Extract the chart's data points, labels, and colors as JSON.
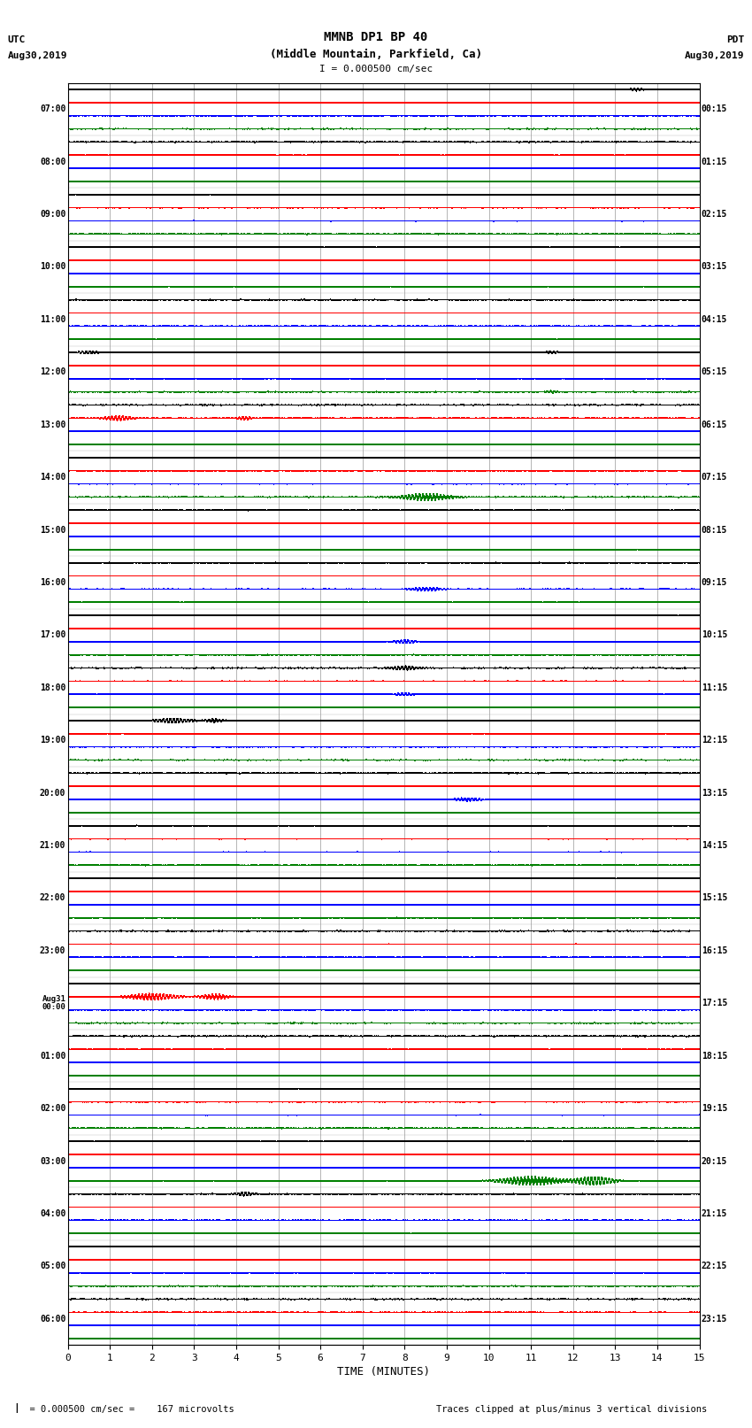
{
  "title_line1": "MMNB DP1 BP 40",
  "title_line2": "(Middle Mountain, Parkfield, Ca)",
  "scale_text": "I = 0.000500 cm/sec",
  "left_label_top": "UTC",
  "left_label_date": "Aug30,2019",
  "right_label_top": "PDT",
  "right_label_date": "Aug30,2019",
  "xlabel": "TIME (MINUTES)",
  "footer_left": "  = 0.000500 cm/sec =    167 microvolts",
  "footer_right": "Traces clipped at plus/minus 3 vertical divisions",
  "utc_labels": [
    "07:00",
    "08:00",
    "09:00",
    "10:00",
    "11:00",
    "12:00",
    "13:00",
    "14:00",
    "15:00",
    "16:00",
    "17:00",
    "18:00",
    "19:00",
    "20:00",
    "21:00",
    "22:00",
    "23:00",
    "Aug31\n00:00",
    "01:00",
    "02:00",
    "03:00",
    "04:00",
    "05:00",
    "06:00"
  ],
  "pdt_labels": [
    "00:15",
    "01:15",
    "02:15",
    "03:15",
    "04:15",
    "05:15",
    "06:15",
    "07:15",
    "08:15",
    "09:15",
    "10:15",
    "11:15",
    "12:15",
    "13:15",
    "14:15",
    "15:15",
    "16:15",
    "17:15",
    "18:15",
    "19:15",
    "20:15",
    "21:15",
    "22:15",
    "23:15"
  ],
  "n_rows": 24,
  "n_traces_per_row": 4,
  "trace_colors": [
    "black",
    "red",
    "blue",
    "green"
  ],
  "bg_color": "white",
  "grid_color": "#999999",
  "minutes_per_row": 15,
  "x_ticks": [
    0,
    1,
    2,
    3,
    4,
    5,
    6,
    7,
    8,
    9,
    10,
    11,
    12,
    13,
    14,
    15
  ],
  "noise_scale": 0.008,
  "n_samples": 9000
}
